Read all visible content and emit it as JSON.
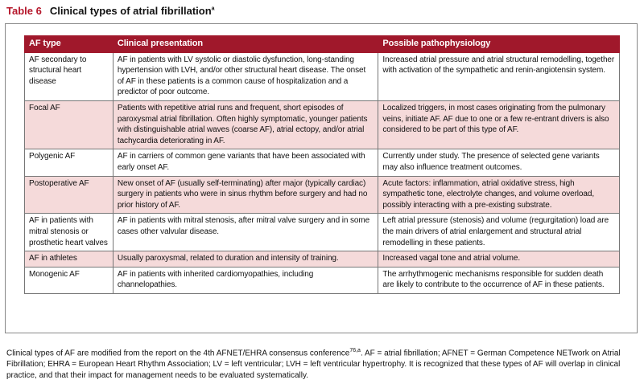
{
  "title": {
    "label": "Table 6",
    "text": "Clinical types of atrial fibrillation",
    "sup": "a"
  },
  "table": {
    "header": [
      "AF type",
      "Clinical presentation",
      "Possible pathophysiology"
    ],
    "rows": [
      [
        "AF secondary to structural heart disease",
        "AF in patients with LV systolic or diastolic dysfunction, long-standing hypertension with LVH, and/or other structural heart disease. The onset of AF in these patients is a common cause of hospitalization and a predictor of poor outcome.",
        "Increased atrial pressure and atrial structural remodelling, together with activation of the sympathetic and renin-angiotensin system."
      ],
      [
        "Focal AF",
        "Patients with repetitive atrial runs and frequent, short episodes of paroxysmal atrial fibrillation. Often highly symptomatic, younger patients with distinguishable atrial waves (coarse AF), atrial ectopy, and/or atrial tachycardia deteriorating in AF.",
        "Localized triggers, in most cases originating from the pulmonary veins, initiate AF. AF due to one or a few re-entrant drivers is also considered to be part of this type of AF."
      ],
      [
        "Polygenic AF",
        "AF in carriers of common gene variants that have been associated with early onset AF.",
        "Currently under study. The presence of selected gene variants may also influence treatment outcomes."
      ],
      [
        "Postoperative AF",
        "New onset of AF (usually self-terminating) after major (typically cardiac) surgery in patients who were in sinus rhythm before surgery and had no prior history of AF.",
        "Acute factors: inflammation, atrial oxidative stress, high sympathetic tone, electrolyte changes, and volume overload, possibly interacting with a pre-existing substrate."
      ],
      [
        "AF in patients with mitral stenosis or prosthetic heart valves",
        "AF in patients with mitral stenosis, after mitral valve surgery and in some cases other valvular disease.",
        "Left atrial pressure (stenosis) and volume (regurgitation) load are the main drivers of atrial enlargement and structural atrial remodelling in these patients."
      ],
      [
        "AF in athletes",
        "Usually paroxysmal, related to duration and intensity of training.",
        "Increased vagal tone and atrial volume."
      ],
      [
        "Monogenic AF",
        "AF in patients with inherited cardiomyopathies, including channelopathies.",
        "The arrhythmogenic mechanisms responsible for sudden death are likely to contribute to the occurrence of AF in these patients."
      ]
    ]
  },
  "footnote": {
    "before": "Clinical types of AF are modified from the report on the 4th AFNET/EHRA consensus conference",
    "ref": "76,a",
    "after": ". AF = atrial fibrillation; AFNET = German Competence NETwork on Atrial Fibrillation; EHRA = European Heart Rhythm Association; LV = left ventricular; LVH = left ventricular hypertrophy. It is recognized that these types of AF will overlap in clinical practice, and that their impact for management needs to be evaluated systematically."
  }
}
